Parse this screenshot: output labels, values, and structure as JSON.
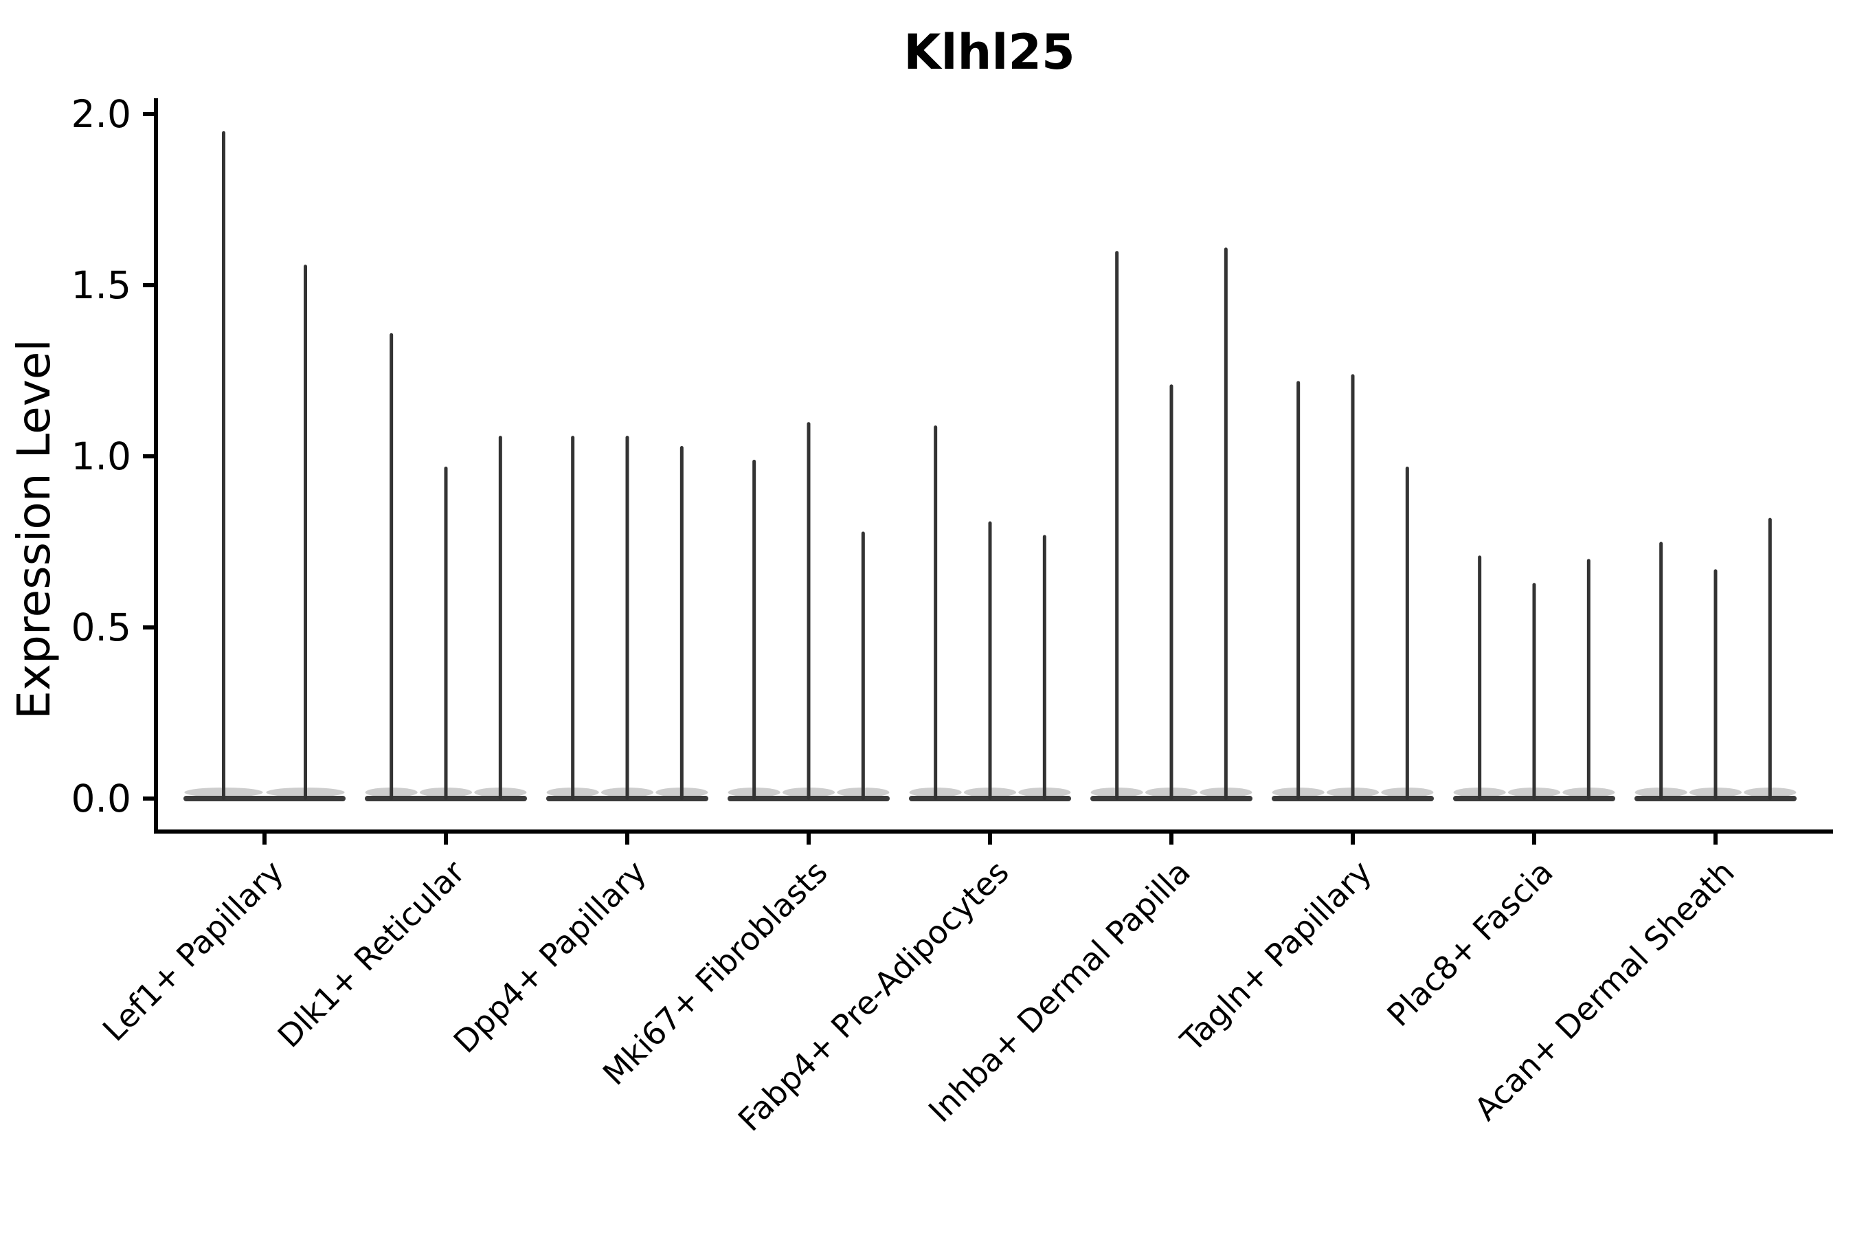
{
  "title": "Klhl25",
  "axes": {
    "ylabel": "Expression Level"
  },
  "chart_data": {
    "type": "violin",
    "title": "Klhl25",
    "xlabel": "",
    "ylabel": "Expression Level",
    "ylim": [
      0,
      2.05
    ],
    "grid": false,
    "legend": "none",
    "yticks": [
      0,
      0.5,
      1.0,
      1.5,
      2.0
    ],
    "ytick_labels": [
      "0.0",
      "0.5",
      "1.0",
      "1.5",
      "2.0"
    ],
    "categories": [
      "Lef1+ Papillary",
      "Dlk1+ Reticular",
      "Dpp4+ Papillary",
      "Mki67+ Fibroblasts",
      "Fabp4+ Pre-Adipocytes",
      "Inhba+ Dermal Papilla",
      "Tagln+ Papillary",
      "Plac8+ Fascia",
      "Acan+ Dermal Sheath"
    ],
    "series": [
      {
        "category": "Lef1+ Papillary",
        "violin_peaks": [
          1.95,
          1.56
        ]
      },
      {
        "category": "Dlk1+ Reticular",
        "violin_peaks": [
          1.36,
          0.97,
          1.06
        ]
      },
      {
        "category": "Dpp4+ Papillary",
        "violin_peaks": [
          1.06,
          1.06,
          1.03
        ]
      },
      {
        "category": "Mki67+ Fibroblasts",
        "violin_peaks": [
          0.99,
          1.1,
          0.78
        ]
      },
      {
        "category": "Fabp4+ Pre-Adipocytes",
        "violin_peaks": [
          1.09,
          0.81,
          0.77
        ]
      },
      {
        "category": "Inhba+ Dermal Papilla",
        "violin_peaks": [
          1.6,
          1.21,
          1.61
        ]
      },
      {
        "category": "Tagln+ Papillary",
        "violin_peaks": [
          1.22,
          1.24,
          0.97
        ]
      },
      {
        "category": "Plac8+ Fascia",
        "violin_peaks": [
          0.71,
          0.63,
          0.7
        ]
      },
      {
        "category": "Acan+ Dermal Sheath",
        "violin_peaks": [
          0.75,
          0.67,
          0.82
        ]
      }
    ],
    "colors": {
      "violin_edge": "#333333",
      "violin_fill": "#9c9c9c",
      "axis": "#000000",
      "text": "#000000",
      "background": "#ffffff"
    }
  }
}
